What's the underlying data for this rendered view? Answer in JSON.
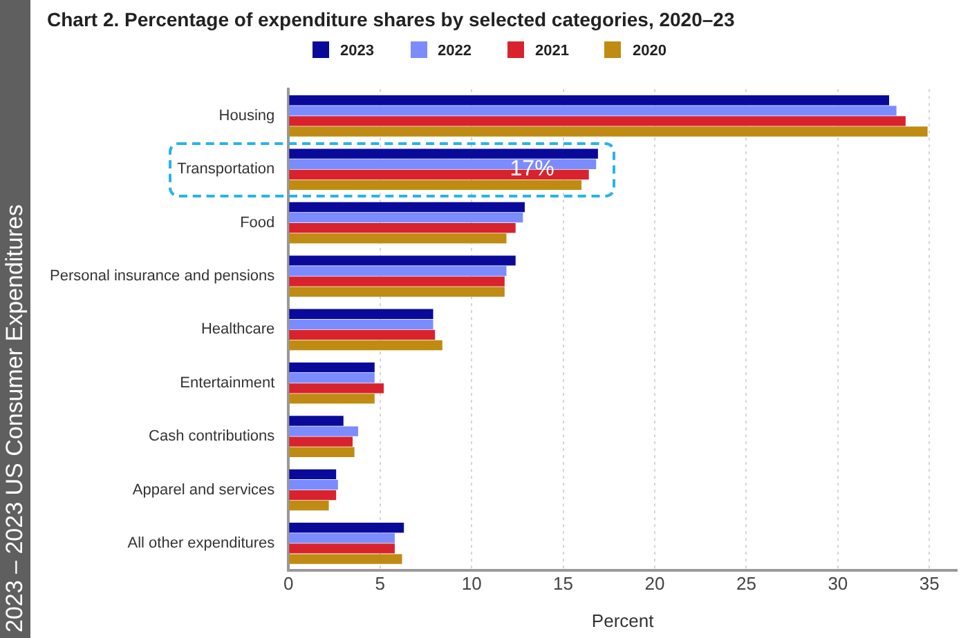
{
  "chart_data": {
    "type": "bar",
    "orientation": "horizontal",
    "title": "Chart 2. Percentage of expenditure shares by selected categories, 2020–23",
    "xlabel": "Percent",
    "categories": [
      "Housing",
      "Transportation",
      "Food",
      "Personal insurance and pensions",
      "Healthcare",
      "Entertainment",
      "Cash contributions",
      "Apparel and services",
      "All other expenditures"
    ],
    "series": [
      {
        "name": "2023",
        "color": "#0a0a9a",
        "values": [
          32.8,
          16.9,
          12.9,
          12.4,
          7.9,
          4.7,
          3.0,
          2.6,
          6.3
        ]
      },
      {
        "name": "2022",
        "color": "#7b8cff",
        "values": [
          33.2,
          16.8,
          12.8,
          11.9,
          7.9,
          4.7,
          3.8,
          2.7,
          5.8
        ]
      },
      {
        "name": "2021",
        "color": "#d8232f",
        "values": [
          33.7,
          16.4,
          12.4,
          11.8,
          8.0,
          5.2,
          3.5,
          2.6,
          5.8
        ]
      },
      {
        "name": "2020",
        "color": "#bf8b12",
        "values": [
          34.9,
          16.0,
          11.9,
          11.8,
          8.4,
          4.7,
          3.6,
          2.2,
          6.2
        ]
      }
    ],
    "xlim": [
      0,
      36.5
    ],
    "xticks": [
      0,
      5,
      10,
      15,
      20,
      25,
      30,
      35
    ],
    "grid": "x",
    "legend": "top",
    "annotations": [
      {
        "text": "17%",
        "x": 13.3,
        "y": "Transportation"
      },
      "2023 – 2023 US Consumer Expenditures"
    ]
  }
}
